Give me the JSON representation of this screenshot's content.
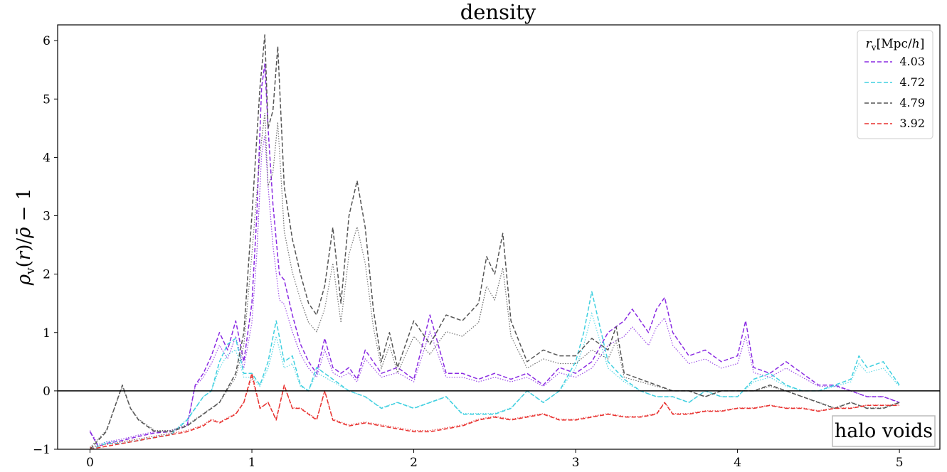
{
  "chart_data": {
    "type": "line",
    "title": "density",
    "xlabel": "",
    "ylabel": "ρ_v(r)/ρ̄ − 1",
    "xlim": [
      -0.2,
      5.25
    ],
    "ylim": [
      -1,
      6.27
    ],
    "xticks": [
      0,
      1,
      2,
      3,
      4,
      5
    ],
    "yticks": [
      -1,
      0,
      1,
      2,
      3,
      4,
      5,
      6
    ],
    "grid": false,
    "zero_line": 0,
    "legend": {
      "title": "r_v[Mpc/h]",
      "placement": "top-right",
      "entries": [
        "4.03",
        "4.72",
        "4.79",
        "3.92"
      ]
    },
    "annotation": "halo voids",
    "series": [
      {
        "name": "4.03",
        "color": "#8a2be2",
        "style": "dashed",
        "x": [
          0.0,
          0.05,
          0.1,
          0.2,
          0.3,
          0.4,
          0.5,
          0.6,
          0.65,
          0.7,
          0.75,
          0.8,
          0.85,
          0.9,
          0.95,
          1.0,
          1.03,
          1.06,
          1.08,
          1.1,
          1.13,
          1.17,
          1.2,
          1.25,
          1.3,
          1.35,
          1.4,
          1.45,
          1.5,
          1.55,
          1.6,
          1.65,
          1.7,
          1.8,
          1.9,
          2.0,
          2.1,
          2.2,
          2.3,
          2.4,
          2.5,
          2.6,
          2.7,
          2.8,
          2.9,
          3.0,
          3.1,
          3.2,
          3.3,
          3.35,
          3.45,
          3.5,
          3.55,
          3.6,
          3.7,
          3.8,
          3.9,
          4.0,
          4.05,
          4.1,
          4.2,
          4.3,
          4.4,
          4.5,
          4.6,
          4.7,
          4.8,
          4.9,
          5.0
        ],
        "y": [
          -0.7,
          -0.95,
          -0.9,
          -0.85,
          -0.78,
          -0.72,
          -0.7,
          -0.6,
          0.1,
          0.3,
          0.6,
          1.0,
          0.7,
          1.2,
          0.5,
          1.5,
          3.0,
          5.2,
          5.6,
          4.5,
          3.2,
          2.0,
          1.9,
          1.3,
          0.8,
          0.5,
          0.3,
          0.9,
          0.4,
          0.3,
          0.4,
          0.2,
          0.7,
          0.3,
          0.4,
          0.2,
          1.3,
          0.3,
          0.3,
          0.2,
          0.3,
          0.2,
          0.3,
          0.1,
          0.4,
          0.3,
          0.5,
          1.0,
          1.2,
          1.4,
          1.0,
          1.4,
          1.6,
          1.0,
          0.6,
          0.7,
          0.5,
          0.6,
          1.2,
          0.4,
          0.3,
          0.5,
          0.3,
          0.1,
          0.1,
          0.0,
          -0.1,
          -0.1,
          -0.2
        ]
      },
      {
        "name": "4.72",
        "color": "#40d0e0",
        "style": "dashed",
        "x": [
          0.0,
          0.05,
          0.1,
          0.2,
          0.3,
          0.4,
          0.5,
          0.6,
          0.7,
          0.75,
          0.8,
          0.85,
          0.9,
          0.95,
          1.0,
          1.05,
          1.1,
          1.15,
          1.2,
          1.25,
          1.3,
          1.35,
          1.4,
          1.5,
          1.6,
          1.7,
          1.8,
          1.9,
          2.0,
          2.1,
          2.2,
          2.3,
          2.4,
          2.5,
          2.6,
          2.7,
          2.8,
          2.9,
          3.0,
          3.05,
          3.1,
          3.15,
          3.2,
          3.3,
          3.4,
          3.5,
          3.6,
          3.7,
          3.8,
          3.9,
          4.0,
          4.1,
          4.2,
          4.3,
          4.4,
          4.5,
          4.6,
          4.7,
          4.75,
          4.8,
          4.9,
          5.0
        ],
        "y": [
          -1.0,
          -0.95,
          -0.9,
          -0.9,
          -0.85,
          -0.8,
          -0.75,
          -0.5,
          -0.1,
          0.0,
          0.5,
          0.8,
          0.9,
          0.3,
          0.3,
          0.1,
          0.5,
          1.2,
          0.5,
          0.6,
          0.1,
          0.0,
          0.4,
          0.2,
          0.0,
          -0.1,
          -0.3,
          -0.2,
          -0.3,
          -0.2,
          -0.1,
          -0.4,
          -0.4,
          -0.4,
          -0.3,
          0.0,
          -0.2,
          0.0,
          0.5,
          1.0,
          1.7,
          1.1,
          0.5,
          0.2,
          0.0,
          -0.1,
          -0.1,
          -0.2,
          0.0,
          -0.1,
          -0.1,
          0.2,
          0.3,
          0.1,
          0.0,
          0.0,
          0.1,
          0.2,
          0.6,
          0.4,
          0.5,
          0.1
        ]
      },
      {
        "name": "4.79",
        "color": "#555555",
        "style": "dashed",
        "x": [
          0.0,
          0.1,
          0.2,
          0.25,
          0.3,
          0.4,
          0.5,
          0.6,
          0.7,
          0.8,
          0.9,
          0.95,
          1.0,
          1.05,
          1.08,
          1.1,
          1.13,
          1.16,
          1.2,
          1.25,
          1.3,
          1.35,
          1.4,
          1.45,
          1.5,
          1.55,
          1.6,
          1.65,
          1.7,
          1.75,
          1.8,
          1.85,
          1.9,
          2.0,
          2.1,
          2.2,
          2.3,
          2.4,
          2.45,
          2.5,
          2.55,
          2.6,
          2.7,
          2.8,
          2.9,
          3.0,
          3.1,
          3.2,
          3.25,
          3.3,
          3.4,
          3.5,
          3.6,
          3.7,
          3.8,
          3.9,
          4.0,
          4.1,
          4.2,
          4.3,
          4.4,
          4.5,
          4.6,
          4.7,
          4.8,
          4.9,
          5.0
        ],
        "y": [
          -1.0,
          -0.7,
          0.1,
          -0.3,
          -0.5,
          -0.7,
          -0.7,
          -0.6,
          -0.4,
          -0.2,
          0.3,
          1.0,
          3.0,
          5.2,
          6.1,
          4.5,
          4.8,
          5.9,
          3.5,
          2.6,
          2.0,
          1.5,
          1.3,
          1.8,
          2.8,
          1.5,
          3.0,
          3.6,
          2.8,
          1.4,
          0.5,
          1.0,
          0.4,
          1.2,
          0.8,
          1.3,
          1.2,
          1.5,
          2.3,
          2.0,
          2.7,
          1.2,
          0.5,
          0.7,
          0.6,
          0.6,
          0.9,
          0.7,
          1.1,
          0.3,
          0.2,
          0.1,
          0.0,
          0.0,
          -0.1,
          0.0,
          0.0,
          0.0,
          0.1,
          0.0,
          -0.1,
          -0.2,
          -0.3,
          -0.2,
          -0.3,
          -0.3,
          -0.2
        ]
      },
      {
        "name": "3.92",
        "color": "#e8312f",
        "style": "dashed",
        "x": [
          0.0,
          0.1,
          0.2,
          0.3,
          0.4,
          0.5,
          0.6,
          0.7,
          0.75,
          0.8,
          0.9,
          0.95,
          1.0,
          1.05,
          1.1,
          1.15,
          1.2,
          1.25,
          1.3,
          1.35,
          1.4,
          1.45,
          1.5,
          1.6,
          1.7,
          1.8,
          1.9,
          2.0,
          2.1,
          2.2,
          2.3,
          2.4,
          2.5,
          2.6,
          2.7,
          2.8,
          2.9,
          3.0,
          3.1,
          3.2,
          3.3,
          3.4,
          3.5,
          3.55,
          3.6,
          3.7,
          3.8,
          3.9,
          4.0,
          4.1,
          4.2,
          4.3,
          4.4,
          4.5,
          4.6,
          4.7,
          4.8,
          4.9,
          5.0
        ],
        "y": [
          -1.0,
          -0.95,
          -0.9,
          -0.85,
          -0.8,
          -0.75,
          -0.7,
          -0.6,
          -0.5,
          -0.55,
          -0.4,
          -0.2,
          0.3,
          -0.3,
          -0.2,
          -0.5,
          0.1,
          -0.3,
          -0.3,
          -0.4,
          -0.5,
          0.0,
          -0.5,
          -0.6,
          -0.55,
          -0.6,
          -0.65,
          -0.7,
          -0.7,
          -0.65,
          -0.6,
          -0.5,
          -0.45,
          -0.5,
          -0.45,
          -0.4,
          -0.5,
          -0.5,
          -0.45,
          -0.4,
          -0.45,
          -0.45,
          -0.4,
          -0.2,
          -0.4,
          -0.4,
          -0.35,
          -0.35,
          -0.3,
          -0.3,
          -0.25,
          -0.3,
          -0.3,
          -0.35,
          -0.3,
          -0.3,
          -0.25,
          -0.25,
          -0.25
        ]
      }
    ]
  }
}
